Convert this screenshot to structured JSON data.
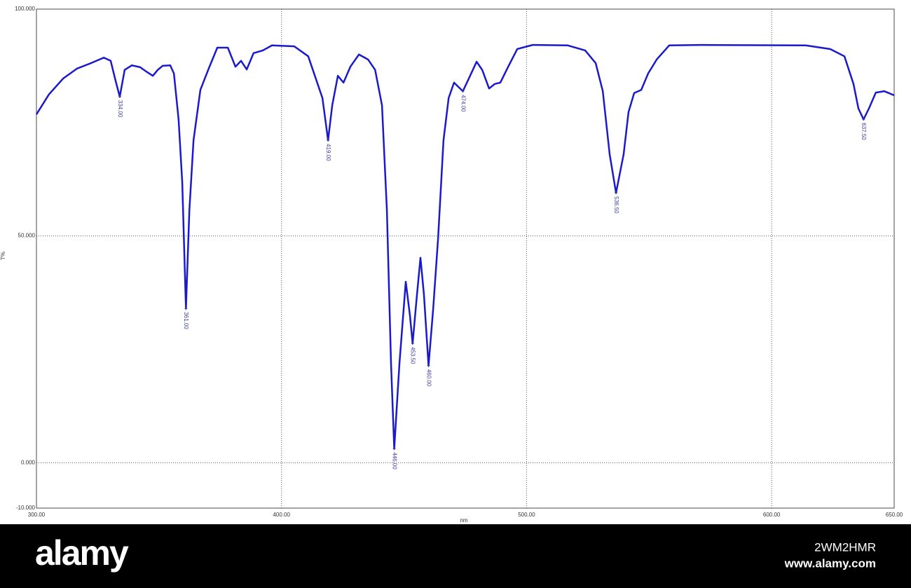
{
  "chart_data": {
    "type": "line",
    "x_label": "nm",
    "y_label": "T%",
    "color": "#1a1acc",
    "xlim": [
      300,
      650
    ],
    "ylim": [
      -10,
      100
    ],
    "xticks": [
      {
        "value": 300,
        "label": "300.00"
      },
      {
        "value": 400,
        "label": "400.00"
      },
      {
        "value": 500,
        "label": "500.00"
      },
      {
        "value": 600,
        "label": "600.00"
      },
      {
        "value": 650,
        "label": "650.00"
      }
    ],
    "yticks": [
      {
        "value": 100,
        "label": "100.000"
      },
      {
        "value": 50,
        "label": "50.000"
      },
      {
        "value": 0,
        "label": "0.000"
      },
      {
        "value": -10,
        "label": "-10.000"
      }
    ],
    "grid": true,
    "x": [
      300,
      305.1,
      310.9,
      316.6,
      322.3,
      327.5,
      330.3,
      332.3,
      334.0,
      336.0,
      338.9,
      342.3,
      345.2,
      347.5,
      349.5,
      351.5,
      354.6,
      356.1,
      358.0,
      359.5,
      361.0,
      362.4,
      364.1,
      366.9,
      370.3,
      373.8,
      378.1,
      381.2,
      383.5,
      385.8,
      388.6,
      392.4,
      396.1,
      405.2,
      410.9,
      413.8,
      416.7,
      419.0,
      420.7,
      423.0,
      425.3,
      428.1,
      431.6,
      435.3,
      438.2,
      441.0,
      443.0,
      444.7,
      446.0,
      448.1,
      450.7,
      452.4,
      453.5,
      455.3,
      456.7,
      458.1,
      460.0,
      461.9,
      463.9,
      466.1,
      468.2,
      470.4,
      474.0,
      476.7,
      479.6,
      481.9,
      484.7,
      487.0,
      489.3,
      492.5,
      496.2,
      502.5,
      516.8,
      523.9,
      528.2,
      531.1,
      533.9,
      536.5,
      539.6,
      541.6,
      543.9,
      546.8,
      549.6,
      553.1,
      558.2,
      571.1,
      613.9,
      623.9,
      629.7,
      633.4,
      635.4,
      637.5,
      639.7,
      642.5,
      646.0,
      650
    ],
    "values": [
      76.8,
      81.2,
      84.7,
      86.9,
      88.1,
      89.3,
      88.6,
      84.2,
      80.7,
      86.6,
      87.6,
      87.2,
      86.1,
      85.3,
      86.6,
      87.5,
      87.6,
      85.8,
      75.7,
      61.8,
      34.0,
      55.6,
      71.1,
      82.2,
      86.9,
      91.5,
      91.5,
      87.3,
      88.6,
      86.7,
      90.3,
      90.9,
      92.0,
      91.8,
      89.6,
      85.0,
      80.4,
      71.1,
      78.8,
      85.3,
      83.8,
      87.3,
      90.0,
      88.9,
      86.6,
      78.8,
      55.7,
      21.7,
      3.1,
      21.7,
      39.9,
      32.5,
      26.3,
      37.2,
      45.2,
      37.2,
      21.4,
      34.0,
      49.5,
      71.1,
      80.4,
      83.8,
      81.9,
      85.0,
      88.4,
      86.6,
      82.5,
      83.5,
      83.8,
      87.3,
      91.2,
      92.1,
      92.0,
      90.9,
      88.1,
      81.9,
      68.0,
      59.5,
      68.0,
      77.3,
      81.5,
      82.2,
      85.8,
      88.9,
      92.0,
      92.1,
      92.0,
      91.2,
      89.6,
      83.5,
      78.1,
      75.7,
      78.1,
      81.6,
      81.9,
      81.0
    ],
    "peaks": [
      {
        "x": 334.0,
        "y": 80.7,
        "label": "334.00"
      },
      {
        "x": 361.0,
        "y": 34.0,
        "label": "361.00"
      },
      {
        "x": 419.0,
        "y": 71.1,
        "label": "419.00"
      },
      {
        "x": 446.0,
        "y": 3.1,
        "label": "446.00"
      },
      {
        "x": 453.5,
        "y": 26.3,
        "label": "453.50"
      },
      {
        "x": 460.0,
        "y": 21.4,
        "label": "460.00"
      },
      {
        "x": 474.0,
        "y": 81.9,
        "label": "474.00"
      },
      {
        "x": 536.5,
        "y": 59.5,
        "label": "536.50"
      },
      {
        "x": 637.5,
        "y": 75.7,
        "label": "637.50"
      }
    ]
  },
  "watermark": {
    "logo": "alamy",
    "image_id": "2WM2HMR",
    "site": "www.alamy.com"
  }
}
